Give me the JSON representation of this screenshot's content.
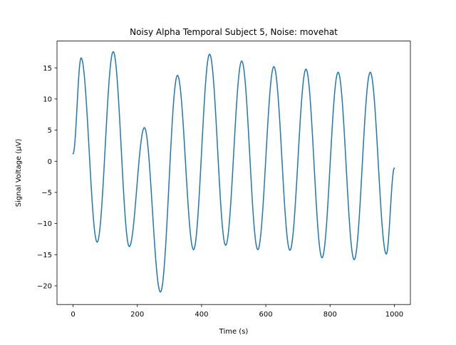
{
  "chart_data": {
    "type": "line",
    "title": "Noisy Alpha Temporal Subject 5, Noise: movehat",
    "xlabel": "Time (s)",
    "ylabel": "Signal Voltage (μV)",
    "xlim": [
      -50,
      1050
    ],
    "ylim": [
      -23,
      19.3
    ],
    "xticks": [
      0,
      200,
      400,
      600,
      800,
      1000
    ],
    "yticks": [
      -20,
      -15,
      -10,
      -5,
      0,
      5,
      10,
      15
    ],
    "xtick_labels": [
      "0",
      "200",
      "400",
      "600",
      "800",
      "1000"
    ],
    "ytick_labels": [
      "−20",
      "−15",
      "−10",
      "−5",
      "0",
      "5",
      "10",
      "15"
    ],
    "grid": false,
    "legend": "none",
    "line_color": "#1f77b4",
    "series": [
      {
        "x": [
          0,
          25,
          75,
          125,
          175,
          222,
          272,
          325,
          375,
          425,
          475,
          525,
          575,
          625,
          675,
          725,
          775,
          825,
          875,
          925,
          975,
          1000
        ],
        "y": [
          1.2,
          16.6,
          -13.0,
          17.6,
          -13.7,
          5.4,
          -21.0,
          13.8,
          -14.2,
          17.2,
          -13.5,
          16.1,
          -14.2,
          15.2,
          -14.3,
          14.8,
          -15.5,
          14.3,
          -15.8,
          14.3,
          -14.9,
          -1.1
        ]
      }
    ]
  }
}
